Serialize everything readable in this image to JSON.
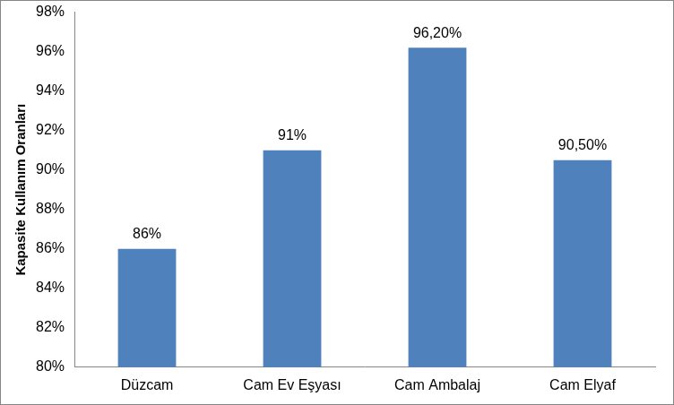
{
  "chart_data": {
    "type": "bar",
    "y_label": "Kapasite Kullanım Oranları",
    "categories": [
      "Düzcam",
      "Cam Ev Eşyası",
      "Cam Ambalaj",
      "Cam Elyaf"
    ],
    "values": [
      86,
      91,
      96.2,
      90.5
    ],
    "value_labels": [
      "86%",
      "91%",
      "96,20%",
      "90,50%"
    ],
    "color": "#4f81bd",
    "ylim": [
      80,
      98
    ],
    "yticks": [
      {
        "value": 80,
        "label": "80%"
      },
      {
        "value": 82,
        "label": "82%"
      },
      {
        "value": 84,
        "label": "84%"
      },
      {
        "value": 86,
        "label": "86%"
      },
      {
        "value": 88,
        "label": "88%"
      },
      {
        "value": 90,
        "label": "90%"
      },
      {
        "value": 92,
        "label": "92%"
      },
      {
        "value": 94,
        "label": "94%"
      },
      {
        "value": 96,
        "label": "96%"
      },
      {
        "value": 98,
        "label": "98%"
      }
    ],
    "grid": false,
    "data_labels": true
  }
}
